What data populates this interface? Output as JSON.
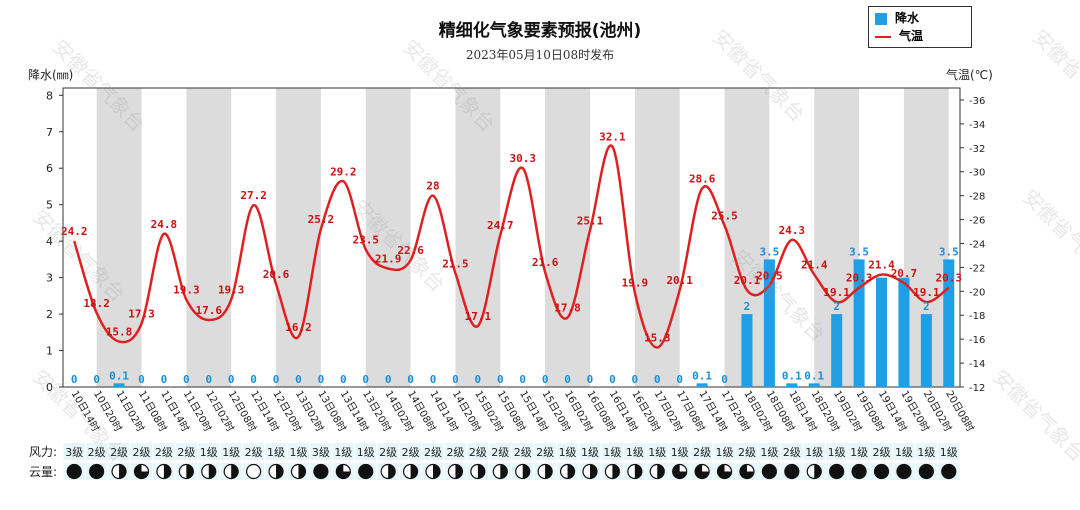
{
  "header": {
    "title": "精细化气象要素预报(池州)",
    "subtitle": "2023年05月10日08时发布"
  },
  "legend": {
    "rain_label": "降水",
    "temp_label": "气温"
  },
  "axes": {
    "left_name": "降水(㎜)",
    "right_name": "气温(℃)"
  },
  "watermark": "安徽省气象台",
  "colors": {
    "bar": "#1e9fe6",
    "line": "#e02020",
    "shade": "#dcdcdc",
    "cell": "#e6f6fb"
  },
  "rows": {
    "wind_label": "风力:",
    "cloud_label": "云量:"
  },
  "chart_data": {
    "type": "bar+line",
    "title": "精细化气象要素预报(池州)",
    "categories": [
      "10日14时",
      "10日20时",
      "11日02时",
      "11日08时",
      "11日14时",
      "11日20时",
      "12日02时",
      "12日08时",
      "12日14时",
      "12日20时",
      "13日02时",
      "13日08时",
      "13日14时",
      "13日20时",
      "14日02时",
      "14日08时",
      "14日14时",
      "14日20时",
      "15日02时",
      "15日08时",
      "15日14时",
      "15日20时",
      "16日02时",
      "16日08时",
      "16日14时",
      "16日20时",
      "17日02时",
      "17日08时",
      "17日14时",
      "17日20时",
      "18日02时",
      "18日08时",
      "18日14时",
      "18日20时",
      "19日02时",
      "19日08时",
      "19日14时",
      "19日20时",
      "20日02时",
      "20日08时"
    ],
    "series": [
      {
        "name": "降水",
        "axis": "left",
        "type": "bar",
        "values": [
          0,
          0,
          0.1,
          0,
          0,
          0,
          0,
          0,
          0,
          0,
          0,
          0,
          0,
          0,
          0,
          0,
          0,
          0,
          0,
          0,
          0,
          0,
          0,
          0,
          0,
          0,
          0,
          0,
          0.1,
          0,
          2,
          3.5,
          0.1,
          0.1,
          2,
          3.5,
          3,
          3,
          2,
          3.5
        ],
        "labels": [
          "0",
          "0",
          "0.1",
          "0",
          "0",
          "0",
          "0",
          "0",
          "0",
          "0",
          "0",
          "0",
          "0",
          "0",
          "0",
          "0",
          "0",
          "0",
          "0",
          "0",
          "0",
          "0",
          "0",
          "0",
          "0",
          "0",
          "0",
          "0",
          "0.1",
          "0",
          "2",
          "3.5",
          "0.1",
          "0.1",
          "2",
          "3.5",
          "",
          "",
          "2",
          "3.5"
        ]
      },
      {
        "name": "气温",
        "axis": "right",
        "type": "line",
        "values": [
          24.2,
          18.2,
          15.8,
          17.3,
          24.8,
          19.3,
          17.6,
          19.3,
          27.2,
          20.6,
          16.2,
          25.2,
          29.2,
          23.5,
          21.9,
          22.6,
          28,
          21.5,
          17.1,
          24.7,
          30.3,
          21.6,
          17.8,
          25.1,
          32.1,
          19.9,
          15.3,
          20.1,
          28.6,
          25.5,
          20.1,
          20.5,
          24.3,
          21.4,
          19.1,
          20.3,
          21.4,
          20.7,
          19.1,
          20.3
        ],
        "labels": [
          "24.2",
          "18.2",
          "15.8",
          "17.3",
          "24.8",
          "19.3",
          "17.6",
          "19.3",
          "27.2",
          "20.6",
          "16.2",
          "25.2",
          "29.2",
          "23.5",
          "21.9",
          "22.6",
          "28",
          "21.5",
          "17.1",
          "24.7",
          "30.3",
          "21.6",
          "17.8",
          "25.1",
          "32.1",
          "19.9",
          "15.3",
          "20.1",
          "28.6",
          "25.5",
          "20.1",
          "20.5",
          "24.3",
          "21.4",
          "19.1",
          "20.3",
          "21.4",
          "20.7",
          "19.1",
          "20.3"
        ]
      }
    ],
    "ylim_left": [
      0,
      8.2
    ],
    "yticks_left": [
      0,
      1,
      2,
      3,
      4,
      5,
      6,
      7,
      8
    ],
    "ylim_right": [
      12,
      37
    ],
    "yticks_right": [
      12,
      14,
      16,
      18,
      20,
      22,
      24,
      26,
      28,
      30,
      32,
      34,
      36
    ],
    "shaded_periods": "20时-08时",
    "wind": [
      "3级",
      "2级",
      "2级",
      "2级",
      "2级",
      "2级",
      "1级",
      "1级",
      "2级",
      "1级",
      "1级",
      "3级",
      "1级",
      "1级",
      "2级",
      "2级",
      "2级",
      "2级",
      "2级",
      "2级",
      "2级",
      "2级",
      "1级",
      "1级",
      "1级",
      "1级",
      "1级",
      "1级",
      "2级",
      "1级",
      "2级",
      "1级",
      "2级",
      "1级",
      "1级",
      "1级",
      "2级",
      "1级",
      "1级",
      "1级"
    ],
    "cloud": [
      1,
      1,
      0.5,
      0.75,
      0.5,
      0.5,
      0.5,
      0.5,
      0,
      0.5,
      0.5,
      1,
      0.75,
      1,
      0.5,
      0.5,
      0.5,
      0.5,
      0.5,
      0.5,
      0.5,
      0.5,
      0.5,
      0.5,
      0.5,
      0.5,
      0.5,
      0.75,
      0.75,
      0.75,
      0.75,
      1,
      1,
      0.5,
      1,
      1,
      1,
      1,
      1,
      1
    ]
  }
}
